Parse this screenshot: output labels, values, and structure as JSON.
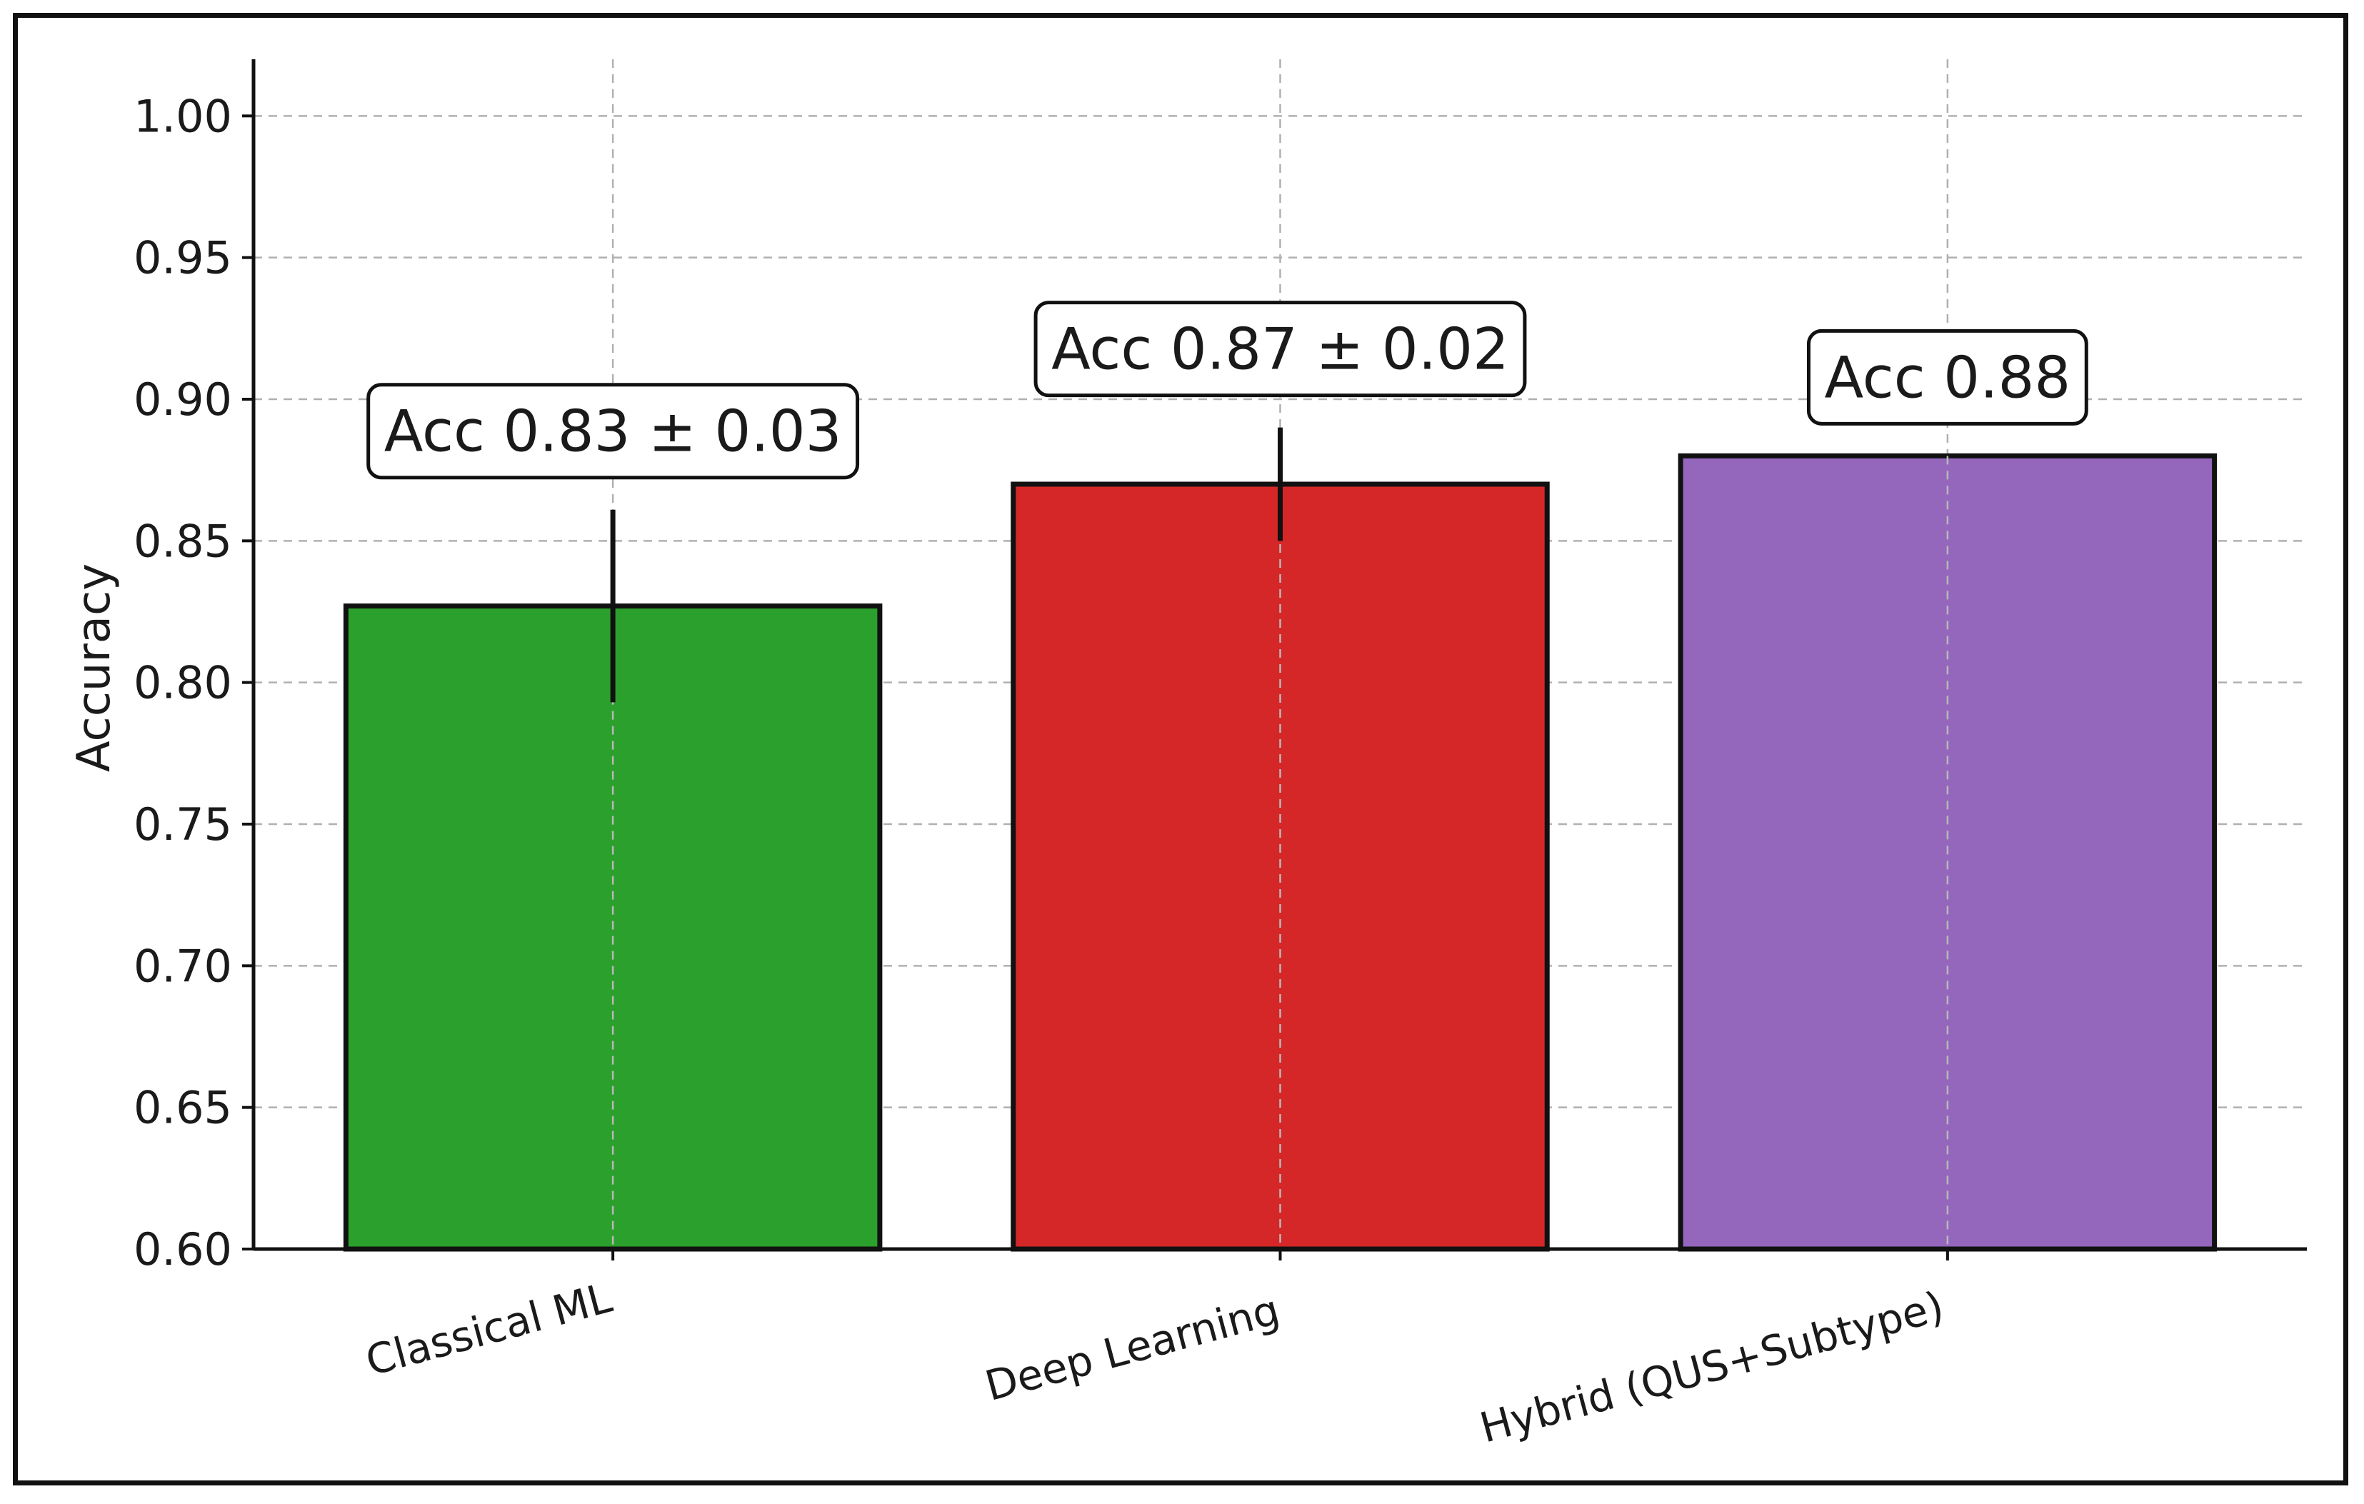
{
  "chart_data": {
    "type": "bar",
    "title": "",
    "xlabel": "",
    "ylabel": "Accuracy",
    "ylim": [
      0.6,
      1.02
    ],
    "yticks": [
      0.6,
      0.65,
      0.7,
      0.75,
      0.8,
      0.85,
      0.9,
      0.95,
      1.0
    ],
    "ytick_labels": [
      "0.60",
      "0.65",
      "0.70",
      "0.75",
      "0.80",
      "0.85",
      "0.90",
      "0.95",
      "1.00"
    ],
    "grid": true,
    "categories": [
      "Classical ML",
      "Deep Learning",
      "Hybrid (QUS+Subtype)"
    ],
    "values": [
      0.827,
      0.87,
      0.88
    ],
    "errors": [
      0.034,
      0.02,
      null
    ],
    "colors": [
      "#2ca02c",
      "#d62728",
      "#9467bd"
    ],
    "annotations": [
      "Acc 0.83 ± 0.03",
      "Acc 0.87 ± 0.02",
      "Acc 0.88"
    ]
  }
}
